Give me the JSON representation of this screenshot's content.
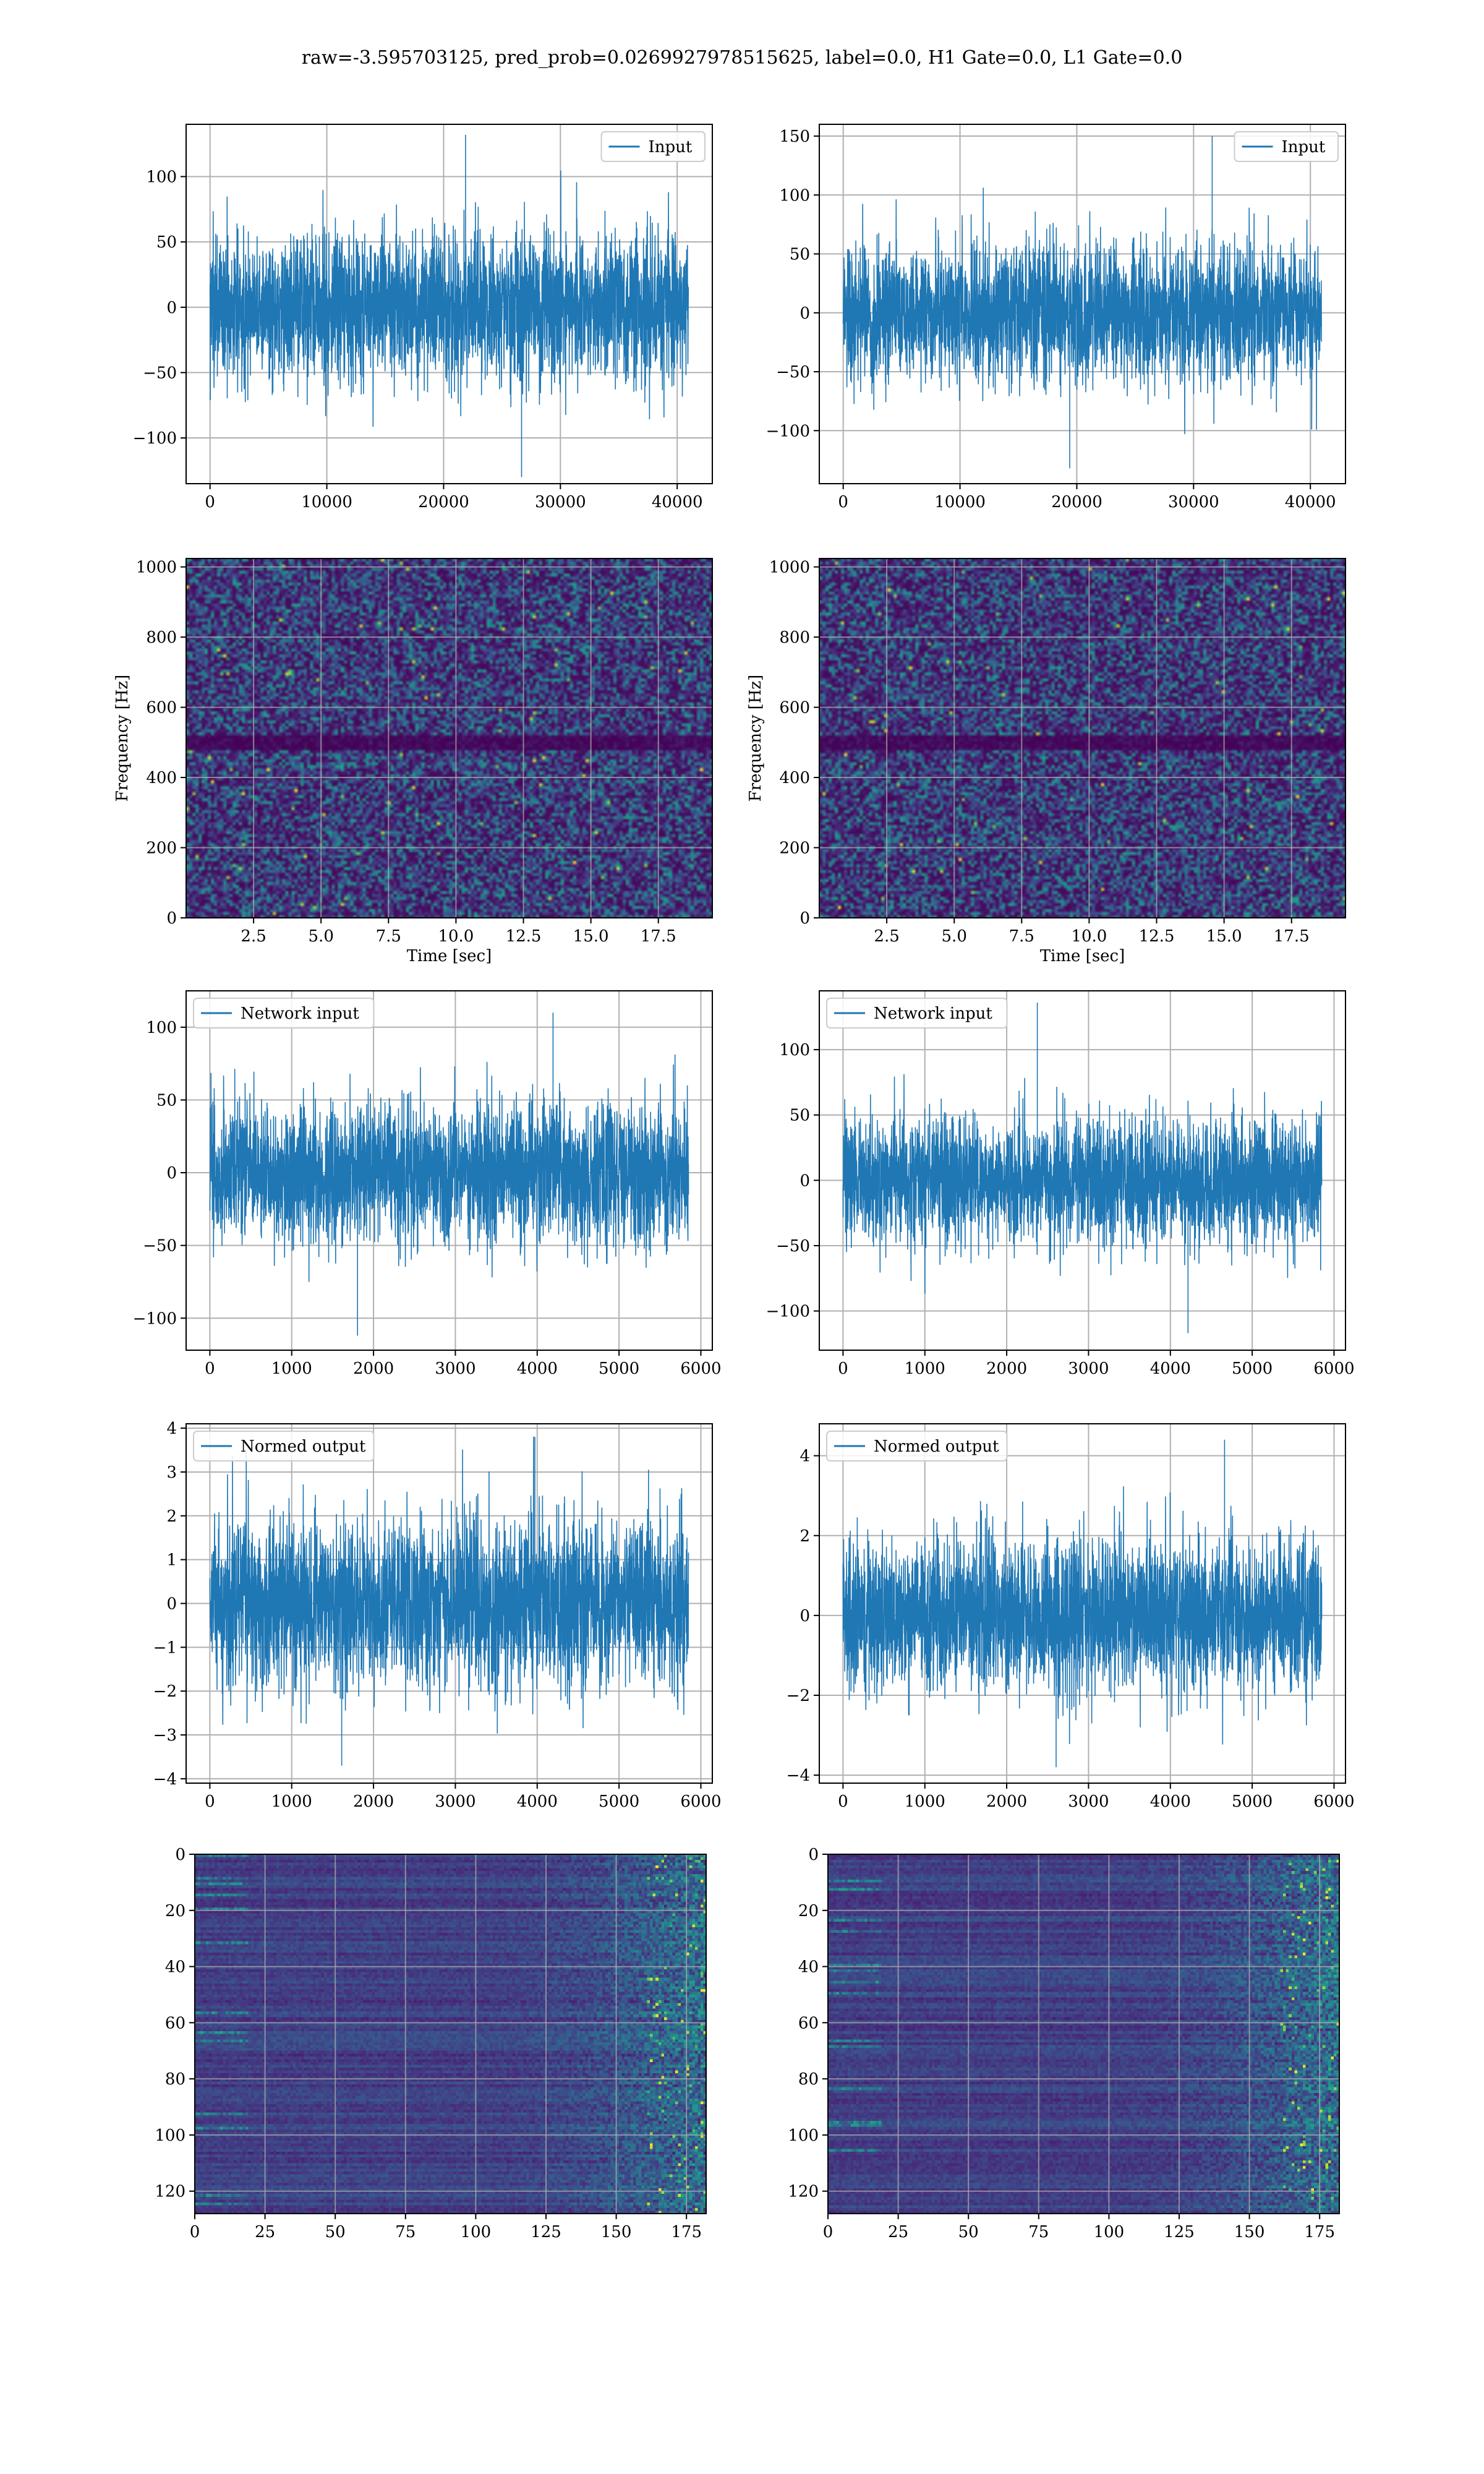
{
  "title": "raw=-3.595703125, pred_prob=0.0269927978515625, label=0.0, H1 Gate=0.0, L1 Gate=0.0",
  "colors": {
    "series": "#1f77b4",
    "grid": "#b0b0b0",
    "viridis": [
      "#440154",
      "#482878",
      "#3e4989",
      "#31688e",
      "#26828e",
      "#1f9e89",
      "#35b779",
      "#6ece58",
      "#b5de2b",
      "#fde725"
    ]
  },
  "chart_data": [
    {
      "id": "h1-input",
      "type": "line",
      "legend": "Input",
      "legend_loc": "upper right",
      "x_range": [
        0,
        40959
      ],
      "xlim": [
        -2048,
        43007
      ],
      "ylim": [
        -135,
        140
      ],
      "noise": {
        "sigma": 28,
        "peak": 132,
        "trough": -130
      },
      "xticks": [
        0,
        10000,
        20000,
        30000,
        40000
      ],
      "yticks": [
        -100,
        -50,
        0,
        50,
        100
      ],
      "grid": true
    },
    {
      "id": "l1-input",
      "type": "line",
      "legend": "Input",
      "legend_loc": "upper right",
      "x_range": [
        0,
        40959
      ],
      "xlim": [
        -2048,
        43007
      ],
      "ylim": [
        -145,
        160
      ],
      "noise": {
        "sigma": 29,
        "peak": 150,
        "trough": -132
      },
      "xticks": [
        0,
        10000,
        20000,
        30000,
        40000
      ],
      "yticks": [
        -100,
        -50,
        0,
        50,
        100,
        150
      ],
      "grid": true
    },
    {
      "id": "h1-spectrogram",
      "type": "heatmap",
      "xlabel": "Time [sec]",
      "ylabel": "Frequency [Hz]",
      "xlim": [
        0,
        19.5
      ],
      "ylim": [
        0,
        1024
      ],
      "xticks": [
        2.5,
        5.0,
        7.5,
        10.0,
        12.5,
        15.0,
        17.5
      ],
      "yticks": [
        0,
        200,
        400,
        600,
        800,
        1000
      ],
      "tick_decimals": 1,
      "dark_band_hz": [
        480,
        520
      ],
      "grid": true
    },
    {
      "id": "l1-spectrogram",
      "type": "heatmap",
      "xlabel": "Time [sec]",
      "ylabel": "Frequency [Hz]",
      "xlim": [
        0,
        19.5
      ],
      "ylim": [
        0,
        1024
      ],
      "xticks": [
        2.5,
        5.0,
        7.5,
        10.0,
        12.5,
        15.0,
        17.5
      ],
      "yticks": [
        0,
        200,
        400,
        600,
        800,
        1000
      ],
      "tick_decimals": 1,
      "dark_band_hz": [
        480,
        520
      ],
      "grid": true
    },
    {
      "id": "h1-network-input",
      "type": "line",
      "legend": "Network input",
      "legend_loc": "upper left",
      "x_range": [
        0,
        5850
      ],
      "xlim": [
        -290,
        6140
      ],
      "ylim": [
        -122,
        125
      ],
      "noise": {
        "sigma": 24,
        "peak": 110,
        "trough": -112
      },
      "xticks": [
        0,
        1000,
        2000,
        3000,
        4000,
        5000,
        6000
      ],
      "yticks": [
        -100,
        -50,
        0,
        50,
        100
      ],
      "grid": true
    },
    {
      "id": "l1-network-input",
      "type": "line",
      "legend": "Network input",
      "legend_loc": "upper left",
      "x_range": [
        0,
        5850
      ],
      "xlim": [
        -290,
        6140
      ],
      "ylim": [
        -130,
        145
      ],
      "noise": {
        "sigma": 24,
        "peak": 136,
        "trough": -117
      },
      "xticks": [
        0,
        1000,
        2000,
        3000,
        4000,
        5000,
        6000
      ],
      "yticks": [
        -100,
        -50,
        0,
        50,
        100
      ],
      "grid": true
    },
    {
      "id": "h1-normed-output",
      "type": "line",
      "legend": "Normed output",
      "legend_loc": "upper left",
      "x_range": [
        0,
        5850
      ],
      "xlim": [
        -290,
        6140
      ],
      "ylim": [
        -4.1,
        4.1
      ],
      "noise": {
        "sigma": 0.95,
        "peak": 3.8,
        "trough": -3.7
      },
      "xticks": [
        0,
        1000,
        2000,
        3000,
        4000,
        5000,
        6000
      ],
      "yticks": [
        -4,
        -3,
        -2,
        -1,
        0,
        1,
        2,
        3,
        4
      ],
      "grid": true
    },
    {
      "id": "l1-normed-output",
      "type": "line",
      "legend": "Normed output",
      "legend_loc": "upper left",
      "x_range": [
        0,
        5850
      ],
      "xlim": [
        -290,
        6140
      ],
      "ylim": [
        -4.2,
        4.8
      ],
      "noise": {
        "sigma": 0.95,
        "peak": 4.4,
        "trough": -3.8
      },
      "xticks": [
        0,
        1000,
        2000,
        3000,
        4000,
        5000,
        6000
      ],
      "yticks": [
        -4,
        -2,
        0,
        2,
        4
      ],
      "grid": true
    },
    {
      "id": "h1-feature-map",
      "type": "heatmap",
      "xlim": [
        0,
        182
      ],
      "ylim": [
        128,
        0
      ],
      "y_inverted": true,
      "xticks": [
        0,
        25,
        50,
        75,
        100,
        125,
        150,
        175
      ],
      "yticks": [
        0,
        20,
        40,
        60,
        80,
        100,
        120
      ],
      "grid": true
    },
    {
      "id": "l1-feature-map",
      "type": "heatmap",
      "xlim": [
        0,
        182
      ],
      "ylim": [
        128,
        0
      ],
      "y_inverted": true,
      "xticks": [
        0,
        25,
        50,
        75,
        100,
        125,
        150,
        175
      ],
      "yticks": [
        0,
        20,
        40,
        60,
        80,
        100,
        120
      ],
      "grid": true
    }
  ]
}
